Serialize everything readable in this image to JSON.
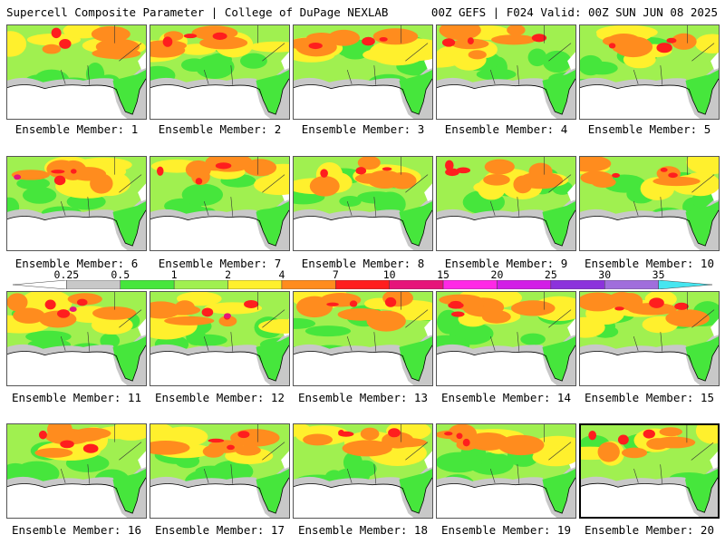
{
  "header": {
    "left": "Supercell Composite Parameter | College of DuPage NEXLAB",
    "right": "00Z GEFS | F024 Valid: 00Z SUN JUN 08 2025"
  },
  "legend": {
    "ticks": [
      "0.25",
      "0.5",
      "1",
      "2",
      "4",
      "7",
      "10",
      "15",
      "20",
      "25",
      "30",
      "35"
    ],
    "colors": [
      "#ffffff",
      "#c8c8c8",
      "#46e63c",
      "#a0f050",
      "#fff02d",
      "#ff8c1e",
      "#ff1e1e",
      "#e6147a",
      "#ff28e6",
      "#d21ee6",
      "#8c32dc",
      "#a06edc",
      "#46e6f0"
    ]
  },
  "panels": [
    {
      "label": "Ensemble Member: 1"
    },
    {
      "label": "Ensemble Member: 2"
    },
    {
      "label": "Ensemble Member: 3"
    },
    {
      "label": "Ensemble Member: 4"
    },
    {
      "label": "Ensemble Member: 5"
    },
    {
      "label": "Ensemble Member: 6"
    },
    {
      "label": "Ensemble Member: 7"
    },
    {
      "label": "Ensemble Member: 8"
    },
    {
      "label": "Ensemble Member: 9"
    },
    {
      "label": "Ensemble Member: 10"
    },
    {
      "label": "Ensemble Member: 11"
    },
    {
      "label": "Ensemble Member: 12"
    },
    {
      "label": "Ensemble Member: 13"
    },
    {
      "label": "Ensemble Member: 14"
    },
    {
      "label": "Ensemble Member: 15"
    },
    {
      "label": "Ensemble Member: 16"
    },
    {
      "label": "Ensemble Member: 17"
    },
    {
      "label": "Ensemble Member: 18"
    },
    {
      "label": "Ensemble Member: 19"
    },
    {
      "label": "Ensemble Member: 20",
      "selected": true
    }
  ]
}
